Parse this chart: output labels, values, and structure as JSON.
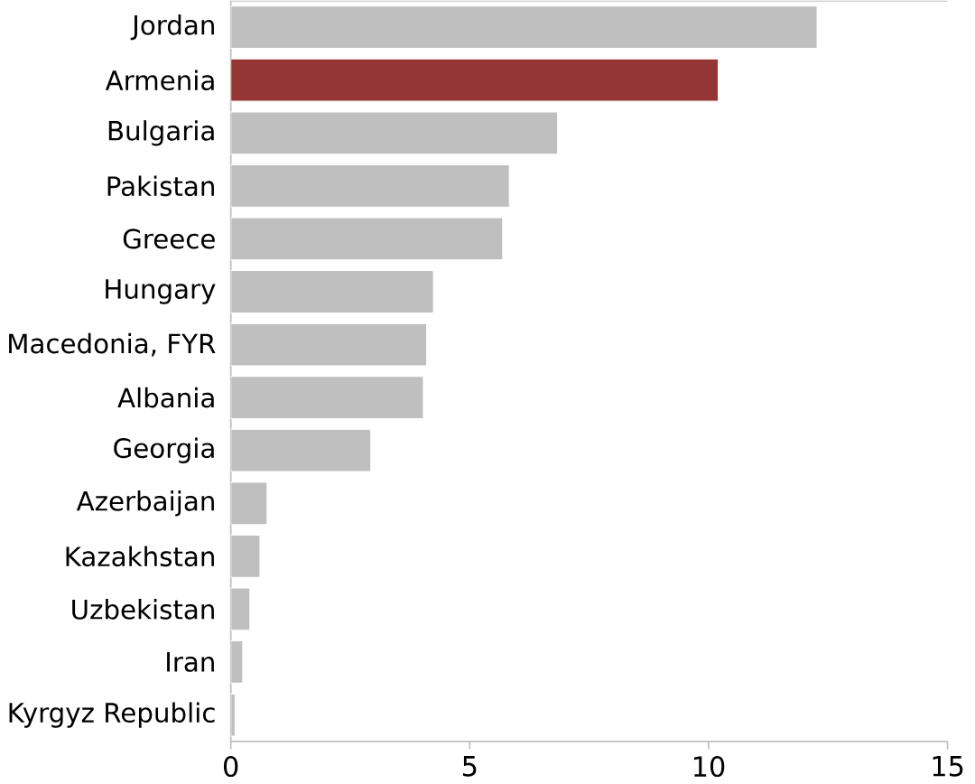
{
  "chart_data": {
    "type": "bar",
    "orientation": "horizontal",
    "categories": [
      "Jordan",
      "Armenia",
      "Bulgaria",
      "Pakistan",
      "Greece",
      "Hungary",
      "Macedonia, FYR",
      "Albania",
      "Georgia",
      "Azerbaijan",
      "Kazakhstan",
      "Uzbekistan",
      "Iran",
      "Kyrgyz Republic"
    ],
    "values": [
      12.27,
      10.2,
      6.84,
      5.83,
      5.69,
      4.24,
      4.1,
      4.03,
      2.93,
      0.76,
      0.61,
      0.4,
      0.25,
      0.09
    ],
    "colors": [
      "#bfbfbf",
      "#943634",
      "#bfbfbf",
      "#bfbfbf",
      "#bfbfbf",
      "#bfbfbf",
      "#bfbfbf",
      "#bfbfbf",
      "#bfbfbf",
      "#bfbfbf",
      "#bfbfbf",
      "#bfbfbf",
      "#bfbfbf",
      "#bfbfbf"
    ],
    "xlim": [
      0,
      15
    ],
    "xticks": [
      0,
      5,
      10,
      15
    ]
  }
}
